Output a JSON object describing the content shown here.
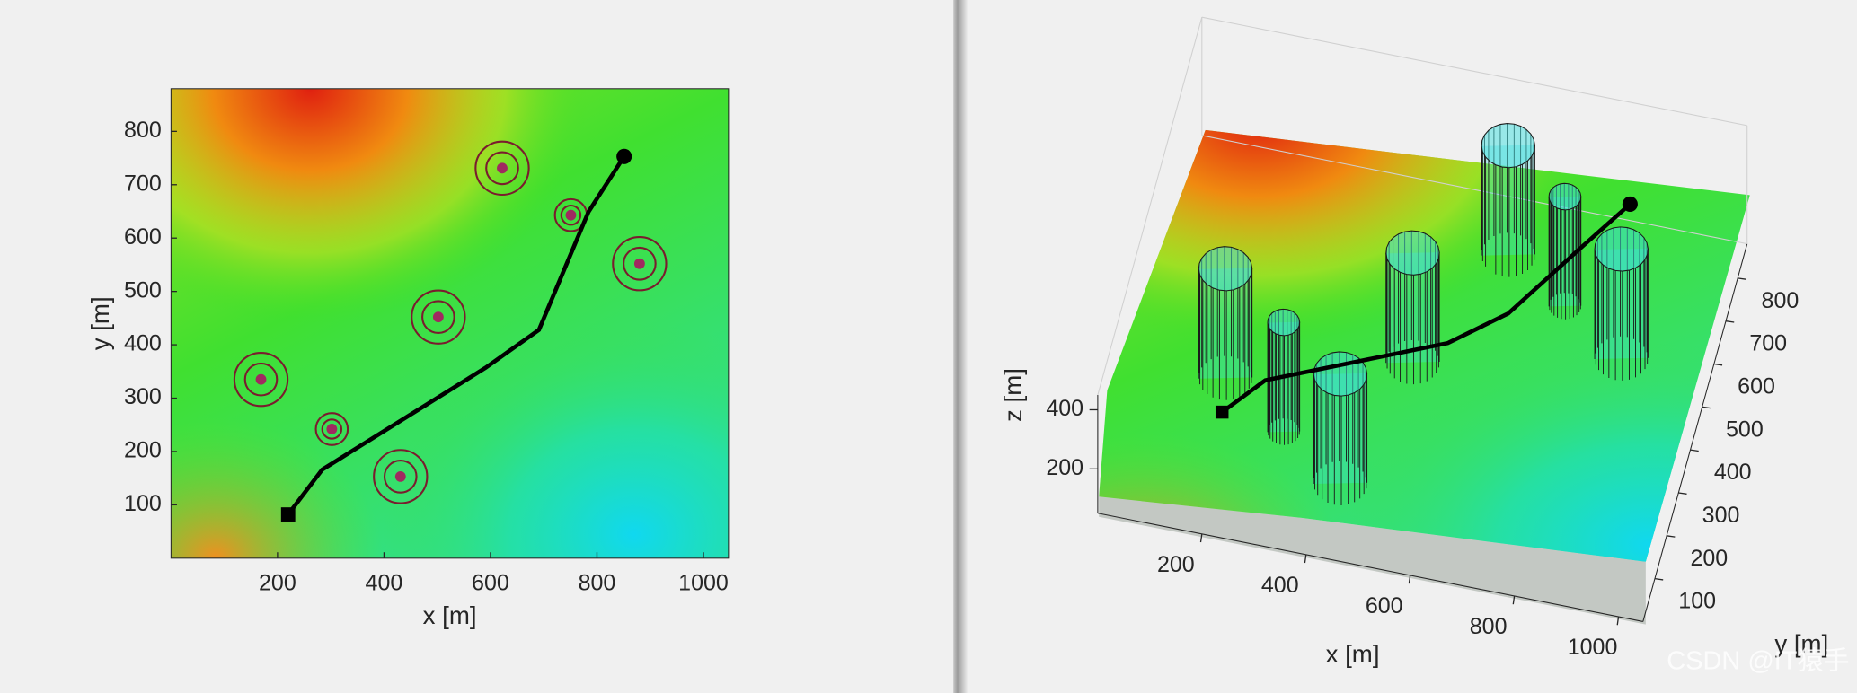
{
  "chart_data": [
    {
      "type": "path-map",
      "xlabel": "x [m]",
      "ylabel": "y [m]",
      "xlim": [
        0,
        1047
      ],
      "ylim": [
        0,
        880
      ],
      "xticks": [
        200,
        400,
        600,
        800,
        1000
      ],
      "yticks": [
        100,
        200,
        300,
        400,
        500,
        600,
        700,
        800
      ],
      "path": {
        "color": "#000000",
        "x": [
          220,
          284,
          591,
          691,
          784,
          851
        ],
        "y": [
          82,
          166,
          357,
          428,
          649,
          753
        ]
      },
      "threats": {
        "color": "#7a1c2e",
        "x": [
          169,
          302,
          431,
          502,
          622,
          751,
          880
        ],
        "y": [
          335,
          242,
          153,
          452,
          731,
          643,
          552
        ],
        "r": [
          50,
          30,
          50,
          50,
          50,
          30,
          50
        ]
      }
    },
    {
      "type": "path-3d",
      "xlabel": "x [m]",
      "ylabel": "y [m]",
      "zlabel": "z [m]",
      "xlim": [
        0,
        1047
      ],
      "ylim": [
        0,
        880
      ],
      "zlim": [
        50,
        450
      ],
      "xticks": [
        200,
        400,
        600,
        800,
        1000
      ],
      "yticks": [
        100,
        200,
        300,
        400,
        500,
        600,
        700,
        800
      ],
      "zticks": [
        200,
        400
      ],
      "path": {
        "color": "#000000",
        "x": [
          220,
          284,
          591,
          691,
          784,
          851
        ],
        "y": [
          82,
          166,
          357,
          428,
          649,
          753
        ],
        "z": [
          350,
          358,
          314,
          346,
          286,
          300
        ]
      },
      "threats": {
        "color": "#40e0e0",
        "x": [
          169,
          302,
          431,
          502,
          622,
          751,
          880
        ],
        "y": [
          335,
          242,
          153,
          452,
          731,
          643,
          552
        ],
        "r": [
          50,
          30,
          50,
          50,
          50,
          30,
          50
        ],
        "z": [
          80,
          450
        ]
      }
    }
  ],
  "watermark": "CSDN @IT猿手"
}
